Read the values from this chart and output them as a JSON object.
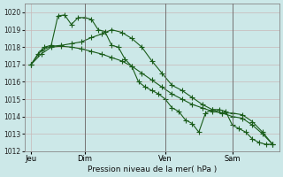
{
  "background_color": "#cce8e8",
  "grid_color": "#c8b8b8",
  "line_color": "#1a5c1a",
  "title": "Pression niveau de la mer( hPa )",
  "ylim": [
    1012,
    1020.5
  ],
  "yticks": [
    1012,
    1013,
    1014,
    1015,
    1016,
    1017,
    1018,
    1019,
    1020
  ],
  "xlabel_ticks": [
    "Jeu",
    "Dim",
    "Ven",
    "Sam"
  ],
  "xlabel_tick_positions": [
    2,
    18,
    42,
    62
  ],
  "vline_positions": [
    18,
    42,
    62
  ],
  "n_points": 75,
  "series1_x": [
    2,
    4,
    6,
    8,
    10,
    12,
    14,
    16,
    18,
    20,
    22,
    24,
    26,
    28,
    30,
    32,
    34,
    36,
    38,
    40,
    42,
    44,
    46,
    48,
    50,
    52,
    54,
    56,
    58,
    60,
    62,
    64,
    66,
    68,
    70,
    72,
    74
  ],
  "series1_y": [
    1017.0,
    1017.6,
    1018.0,
    1018.1,
    1019.8,
    1019.85,
    1019.3,
    1019.7,
    1019.7,
    1019.6,
    1019.0,
    1018.9,
    1018.1,
    1018.0,
    1017.3,
    1016.9,
    1016.0,
    1015.7,
    1015.5,
    1015.3,
    1015.0,
    1014.5,
    1014.3,
    1013.8,
    1013.6,
    1013.1,
    1014.2,
    1014.4,
    1014.4,
    1014.3,
    1013.5,
    1013.3,
    1013.1,
    1012.7,
    1012.5,
    1012.4,
    1012.4
  ],
  "series1_markers": [
    0,
    2,
    4,
    5,
    7,
    9,
    11,
    13,
    15,
    17,
    19,
    21,
    23,
    25,
    26,
    28,
    30,
    32,
    34,
    36
  ],
  "series2_x": [
    2,
    5,
    8,
    11,
    14,
    17,
    20,
    23,
    26,
    29,
    32,
    35,
    38,
    41,
    44,
    47,
    50,
    53,
    56,
    59,
    62,
    65,
    68,
    71,
    74
  ],
  "series2_y": [
    1017.0,
    1017.8,
    1018.05,
    1018.1,
    1018.2,
    1018.3,
    1018.55,
    1018.75,
    1019.0,
    1018.85,
    1018.5,
    1018.0,
    1017.2,
    1016.5,
    1015.8,
    1015.5,
    1015.1,
    1014.7,
    1014.4,
    1014.2,
    1014.2,
    1014.1,
    1013.7,
    1013.1,
    1012.4
  ],
  "series3_x": [
    2,
    5,
    8,
    11,
    14,
    17,
    20,
    23,
    26,
    29,
    32,
    35,
    38,
    41,
    44,
    47,
    50,
    53,
    56,
    59,
    62,
    65,
    68,
    71,
    74
  ],
  "series3_y": [
    1017.0,
    1017.6,
    1018.0,
    1018.05,
    1018.0,
    1017.9,
    1017.75,
    1017.6,
    1017.4,
    1017.2,
    1016.9,
    1016.5,
    1016.1,
    1015.7,
    1015.3,
    1015.0,
    1014.7,
    1014.5,
    1014.3,
    1014.2,
    1014.0,
    1013.9,
    1013.5,
    1013.0,
    1012.4
  ]
}
